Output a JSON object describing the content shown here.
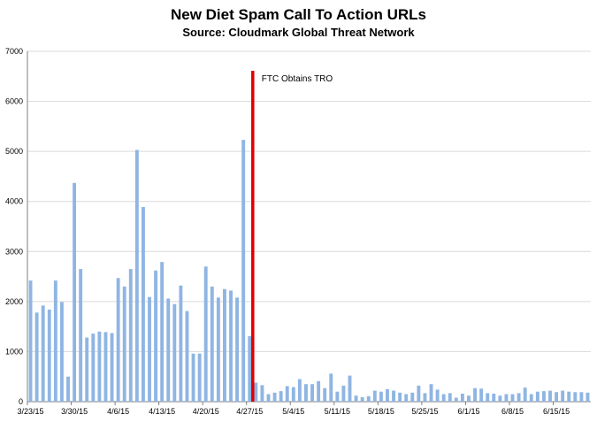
{
  "chart_data": {
    "type": "bar",
    "title": "New Diet Spam Call To Action URLs",
    "subtitle": "Source: Cloudmark Global Threat Network",
    "xlabel": "",
    "ylabel": "",
    "ylim": [
      0,
      7000
    ],
    "yticks": [
      0,
      1000,
      2000,
      3000,
      4000,
      5000,
      6000,
      7000
    ],
    "grid": true,
    "colors": {
      "bar": "#8fb5e3",
      "marker": "#e00000",
      "grid": "#d9d9d9"
    },
    "xtick_labels": [
      "3/23/15",
      "3/30/15",
      "4/6/15",
      "4/13/15",
      "4/20/15",
      "4/27/15",
      "5/4/15",
      "5/11/15",
      "5/18/15",
      "5/25/15",
      "6/1/15",
      "6/8/15",
      "6/15/15"
    ],
    "categories": [
      "3/23/15",
      "3/24/15",
      "3/25/15",
      "3/26/15",
      "3/27/15",
      "3/28/15",
      "3/29/15",
      "3/30/15",
      "3/31/15",
      "4/1/15",
      "4/2/15",
      "4/3/15",
      "4/4/15",
      "4/5/15",
      "4/6/15",
      "4/7/15",
      "4/8/15",
      "4/9/15",
      "4/10/15",
      "4/11/15",
      "4/12/15",
      "4/13/15",
      "4/14/15",
      "4/15/15",
      "4/16/15",
      "4/17/15",
      "4/18/15",
      "4/19/15",
      "4/20/15",
      "4/21/15",
      "4/22/15",
      "4/23/15",
      "4/24/15",
      "4/25/15",
      "4/26/15",
      "4/27/15",
      "4/28/15",
      "4/29/15",
      "4/30/15",
      "5/1/15",
      "5/2/15",
      "5/3/15",
      "5/4/15",
      "5/5/15",
      "5/6/15",
      "5/7/15",
      "5/8/15",
      "5/9/15",
      "5/10/15",
      "5/11/15",
      "5/12/15",
      "5/13/15",
      "5/14/15",
      "5/15/15",
      "5/16/15",
      "5/17/15",
      "5/18/15",
      "5/19/15",
      "5/20/15",
      "5/21/15",
      "5/22/15",
      "5/23/15",
      "5/24/15",
      "5/25/15",
      "5/26/15",
      "5/27/15",
      "5/28/15",
      "5/29/15",
      "5/30/15",
      "5/31/15",
      "6/1/15",
      "6/2/15",
      "6/3/15",
      "6/4/15",
      "6/5/15",
      "6/6/15",
      "6/7/15",
      "6/8/15",
      "6/9/15",
      "6/10/15",
      "6/11/15",
      "6/12/15",
      "6/13/15",
      "6/14/15",
      "6/15/15",
      "6/16/15",
      "6/17/15",
      "6/18/15",
      "6/19/15",
      "6/20/15"
    ],
    "values": [
      2420,
      1780,
      1920,
      1840,
      2420,
      1990,
      500,
      4370,
      2650,
      1280,
      1360,
      1400,
      1390,
      1370,
      2470,
      2300,
      2650,
      5030,
      3890,
      2090,
      2620,
      2790,
      2060,
      1950,
      2320,
      1810,
      960,
      960,
      2700,
      2300,
      2080,
      2250,
      2220,
      2080,
      5230,
      1310,
      380,
      330,
      150,
      180,
      210,
      310,
      290,
      450,
      350,
      350,
      410,
      270,
      560,
      200,
      320,
      520,
      120,
      90,
      110,
      220,
      200,
      250,
      220,
      180,
      150,
      180,
      320,
      170,
      350,
      240,
      150,
      170,
      80,
      160,
      120,
      270,
      260,
      170,
      160,
      120,
      150,
      150,
      170,
      280,
      150,
      200,
      210,
      220,
      190,
      220,
      200,
      190,
      190,
      180
    ],
    "annotations": [
      {
        "text": "FTC Obtains TRO",
        "x": "4/27/15"
      }
    ]
  }
}
